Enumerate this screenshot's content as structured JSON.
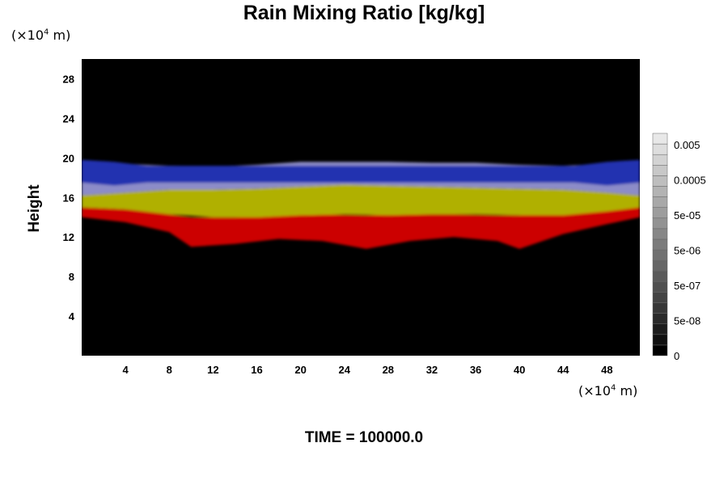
{
  "chart_data": {
    "type": "heatmap",
    "title": "Rain Mixing Ratio [kg/kg]",
    "xlabel": "",
    "ylabel": "Height",
    "x_unit": "(×10",
    "x_unit_exp": "4",
    "x_unit_tail": " m)",
    "y_unit": "(×10",
    "y_unit_exp": "4",
    "y_unit_tail": " m)",
    "xlim": [
      0,
      51
    ],
    "ylim": [
      0,
      30
    ],
    "xticks": [
      4,
      8,
      12,
      16,
      20,
      24,
      28,
      32,
      36,
      40,
      44,
      48
    ],
    "yticks": [
      4,
      8,
      12,
      16,
      20,
      24,
      28
    ],
    "grid": false,
    "background_color": "#000000",
    "layers": [
      {
        "color": "red",
        "hex": "#cc0000",
        "x": [
          0,
          4,
          8,
          10,
          14,
          18,
          22,
          26,
          30,
          34,
          38,
          40,
          44,
          48,
          51
        ],
        "bottom": [
          14,
          13.5,
          12.5,
          11,
          11.3,
          11.8,
          11.6,
          10.8,
          11.6,
          12,
          11.6,
          10.8,
          12.3,
          13.3,
          14
        ],
        "top": [
          15,
          14.8,
          14.3,
          14,
          14,
          14.2,
          14.3,
          14.2,
          14.3,
          14.3,
          14.2,
          14.2,
          14.6,
          15,
          15.2
        ]
      },
      {
        "color": "yellow",
        "hex": "#b0b000",
        "x": [
          0,
          4,
          8,
          12,
          16,
          20,
          24,
          28,
          32,
          36,
          40,
          44,
          48,
          51
        ],
        "bottom": [
          15,
          14.8,
          14.3,
          14,
          14,
          14.2,
          14.3,
          14.2,
          14.3,
          14.3,
          14.2,
          14.2,
          14.6,
          15
        ],
        "top": [
          16.2,
          16.5,
          16.8,
          16.8,
          16.9,
          17.1,
          17.3,
          17.2,
          17.1,
          17,
          16.9,
          16.8,
          16.5,
          16.2
        ]
      },
      {
        "color": "lavender",
        "hex": "#8c8cc8",
        "x": [
          0,
          4,
          8,
          12,
          16,
          20,
          24,
          28,
          32,
          36,
          40,
          44,
          48,
          51
        ],
        "bottom": [
          16.2,
          16.5,
          16.8,
          16.8,
          16.9,
          17.1,
          17.3,
          17.2,
          17.1,
          17,
          16.9,
          16.8,
          16.5,
          16.2
        ],
        "top": [
          19.5,
          19.4,
          19.2,
          19.1,
          19.3,
          19.6,
          19.6,
          19.6,
          19.5,
          19.5,
          19.3,
          19.2,
          19.4,
          19.5
        ]
      },
      {
        "color": "blue",
        "hex": "#2030b0",
        "x": [
          0,
          3,
          6,
          45,
          48,
          51
        ],
        "bottom": [
          17.5,
          17.2,
          17.5,
          17.5,
          17.2,
          17.5
        ],
        "top": [
          19.8,
          19.6,
          19.2,
          19.2,
          19.6,
          19.8
        ]
      }
    ],
    "colorbar": {
      "labels": [
        "0.005",
        "0.0005",
        "5e-05",
        "5e-06",
        "5e-07",
        "5e-08",
        "0"
      ],
      "levels": 21,
      "min_color": "#000000",
      "max_color": "#e8e8e8"
    }
  },
  "footer": {
    "time_text": "TIME = 100000.0"
  }
}
